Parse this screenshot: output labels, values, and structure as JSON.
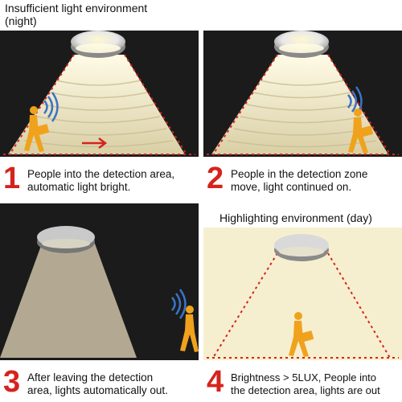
{
  "panels": [
    {
      "number": "1",
      "title_lines": [
        "Insufficient light environment",
        "(night)"
      ],
      "caption_lines": [
        "People into the detection area,",
        "automatic light bright."
      ]
    },
    {
      "number": "2",
      "title_lines": [],
      "caption_lines": [
        "People in the detection zone",
        "move, light continued on."
      ]
    },
    {
      "number": "3",
      "title_lines": [],
      "caption_lines": [
        "After leaving the detection",
        "area, lights automatically out."
      ]
    },
    {
      "number": "4",
      "title_lines": [
        "Highlighting environment (day)"
      ],
      "caption_lines": [
        "Brightness > 5LUX, People into",
        "the detection area, lights are out"
      ]
    }
  ],
  "colors": {
    "night_bg": "#1b1b1b",
    "day_bg": "#f6efcf",
    "accent_red": "#d6231d",
    "person": "#f0a21c",
    "sensor_wave": "#3a73c8",
    "light_beam": "#efe6c2"
  }
}
